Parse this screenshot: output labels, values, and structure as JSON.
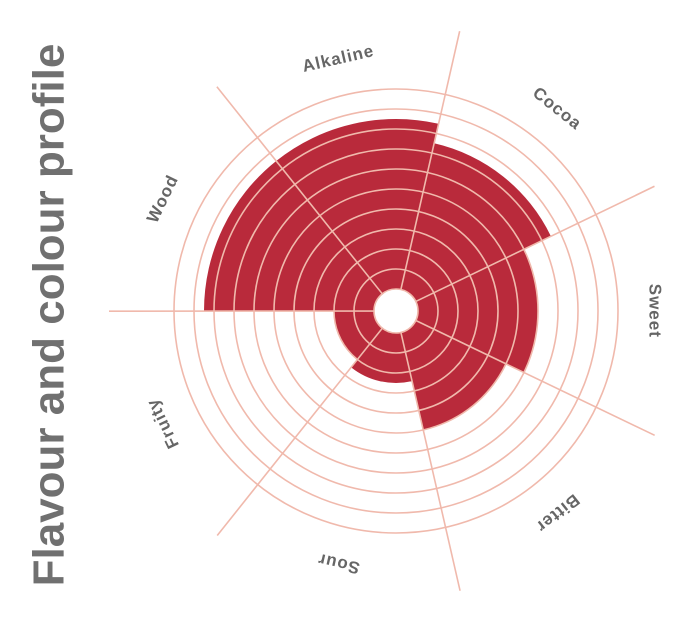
{
  "chart_data": {
    "type": "rose",
    "title": "Flavour and colour profile",
    "categories": [
      "Alkaline",
      "Cocoa",
      "Sweet",
      "Bitter",
      "Sour",
      "Fruity",
      "Wood"
    ],
    "values": [
      8.5,
      7.5,
      6,
      5,
      2.5,
      2,
      8.5
    ],
    "color": "#b92a3b",
    "grid_color": "#f0b9ac",
    "rlim": [
      0,
      10
    ],
    "rticks": [
      0,
      1,
      2,
      3,
      4,
      5,
      6,
      7,
      8,
      9,
      10
    ],
    "grid": true
  }
}
